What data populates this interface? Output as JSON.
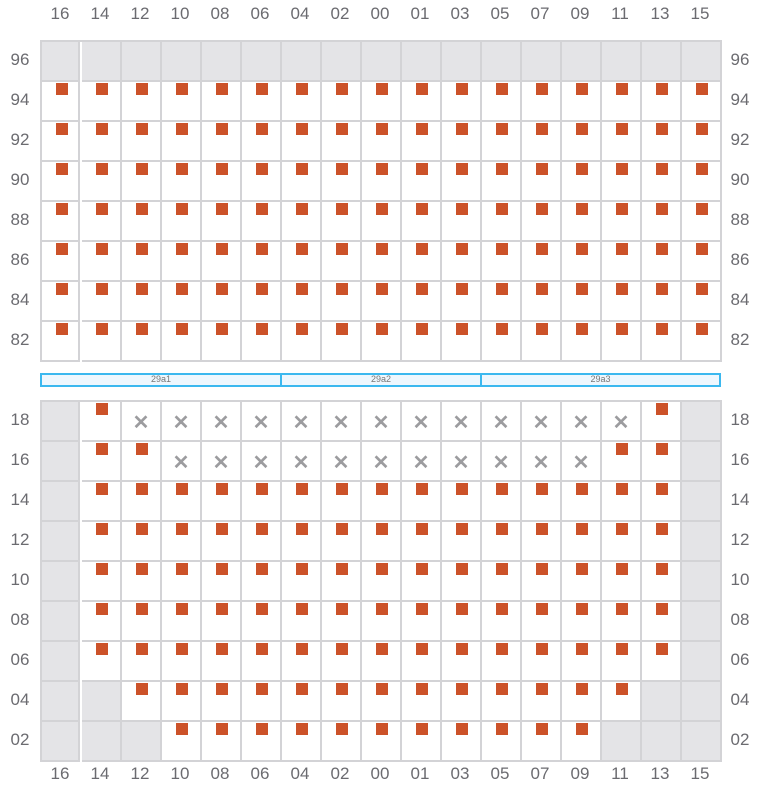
{
  "columns": [
    "16",
    "14",
    "12",
    "10",
    "08",
    "06",
    "04",
    "02",
    "00",
    "01",
    "03",
    "05",
    "07",
    "09",
    "11",
    "13",
    "15"
  ],
  "legend": {
    "gray": "unavailable",
    "s": "occupied",
    "x": "blocked"
  },
  "colors": {
    "occupied": "#cc5229",
    "unavailable": "#e4e4e7",
    "blocked": "#9c9c9f",
    "section": "#3bb8ef"
  },
  "top_block": {
    "rows": [
      {
        "label": "96",
        "cells": "ggggggggggggggggg"
      },
      {
        "label": "94",
        "cells": "sssssssssssssssss"
      },
      {
        "label": "92",
        "cells": "sssssssssssssssss"
      },
      {
        "label": "90",
        "cells": "sssssssssssssssss"
      },
      {
        "label": "88",
        "cells": "sssssssssssssssss"
      },
      {
        "label": "86",
        "cells": "sssssssssssssssss"
      },
      {
        "label": "84",
        "cells": "sssssssssssssssss"
      },
      {
        "label": "82",
        "cells": "sssssssssssssssss"
      }
    ]
  },
  "sections": [
    {
      "label": "29a1",
      "span": 6
    },
    {
      "label": "29a2",
      "span": 5
    },
    {
      "label": "29a3",
      "span": 6
    }
  ],
  "bottom_block": {
    "rows": [
      {
        "label": "18",
        "cells": "gsxxxxxxxxxxxxxsg"
      },
      {
        "label": "16",
        "cells": "gssxxxxxxxxxxxssg"
      },
      {
        "label": "14",
        "cells": "gsssssssssssssssg"
      },
      {
        "label": "12",
        "cells": "gsssssssssssssssg"
      },
      {
        "label": "10",
        "cells": "gsssssssssssssssg"
      },
      {
        "label": "08",
        "cells": "gsssssssssssssssg"
      },
      {
        "label": "06",
        "cells": "gsssssssssssssssg"
      },
      {
        "label": "04",
        "cells": "ggsssssssssssssgg"
      },
      {
        "label": "02",
        "cells": "gggsssssssssssggg"
      }
    ]
  }
}
